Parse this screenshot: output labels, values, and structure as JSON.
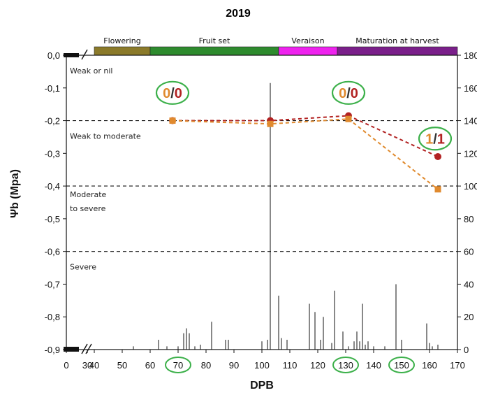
{
  "chart_data": {
    "type": "line",
    "title": "2019",
    "xlabel": "DPB",
    "ylabel": "Ψb (Mpa)",
    "xlim": [
      0,
      170
    ],
    "ylim": [
      -0.9,
      0.0
    ],
    "y2lim": [
      0,
      180
    ],
    "x_tick_labels": [
      "0",
      "30",
      "40",
      "50",
      "60",
      "70",
      "80",
      "90",
      "100",
      "110",
      "120",
      "130",
      "140",
      "150",
      "160",
      "170"
    ],
    "y_tick_labels": [
      "0,0",
      "-0,1",
      "-0,2",
      "-0,3",
      "-0,4",
      "-0,5",
      "-0,6",
      "-0,7",
      "-0,8",
      "-0,9"
    ],
    "y2_tick_labels": [
      "180",
      "160",
      "140",
      "120",
      "100",
      "80",
      "60",
      "40",
      "20",
      "0"
    ],
    "highlighted_x_ticks": [
      "70",
      "130",
      "150"
    ],
    "phases": [
      {
        "label": "Flowering",
        "start": 40,
        "end": 60,
        "color": "#8b7a2a"
      },
      {
        "label": "Fruit set",
        "start": 60,
        "end": 106,
        "color": "#2e8b2e"
      },
      {
        "label": "Veraison",
        "start": 106,
        "end": 127,
        "color": "#ee22ee"
      },
      {
        "label": "Maturation at harvest",
        "start": 127,
        "end": 170,
        "color": "#7a1f8a"
      }
    ],
    "thresholds": [
      {
        "label": "Weak or nil",
        "y": 0.0
      },
      {
        "label": "Weak to moderate",
        "y": -0.2
      },
      {
        "label": "Moderate to severe",
        "y": -0.4
      },
      {
        "label": "Severe",
        "y": -0.6
      }
    ],
    "series": [
      {
        "color": "#b22222",
        "marker": "circle",
        "x": [
          68,
          103,
          131,
          163
        ],
        "y": [
          -0.2,
          -0.2,
          -0.185,
          -0.31
        ]
      },
      {
        "color": "#e08a2e",
        "marker": "square",
        "x": [
          68,
          103,
          131,
          163
        ],
        "y": [
          -0.2,
          -0.21,
          -0.195,
          -0.41
        ]
      }
    ],
    "bars": {
      "color": "#111111",
      "x": [
        54,
        63,
        66,
        70,
        72,
        73,
        74,
        76,
        78,
        82,
        87,
        88,
        100,
        102,
        103,
        106,
        107,
        109,
        117,
        119,
        121,
        122,
        125,
        126,
        129,
        131,
        133,
        134,
        135,
        136,
        137,
        138,
        140,
        144,
        148,
        150,
        159,
        160,
        161,
        163
      ],
      "values": [
        2,
        6,
        2,
        2,
        10,
        13,
        10,
        2,
        3,
        17,
        6,
        6,
        5,
        6,
        163,
        33,
        7,
        6,
        28,
        23,
        6,
        20,
        4,
        36,
        11,
        2,
        5,
        11,
        5,
        28,
        3,
        5,
        2,
        2,
        40,
        6,
        16,
        4,
        2,
        3
      ]
    },
    "annotations": [
      {
        "x": 68,
        "first": "0",
        "second": "0"
      },
      {
        "x": 131,
        "first": "0",
        "second": "0"
      },
      {
        "x": 162,
        "first": "1",
        "second": "1"
      }
    ],
    "annotation_colors": {
      "first": "#e08a2e",
      "second": "#b22222",
      "ring": "#3cb04a"
    },
    "grid": false,
    "legend": "none"
  }
}
